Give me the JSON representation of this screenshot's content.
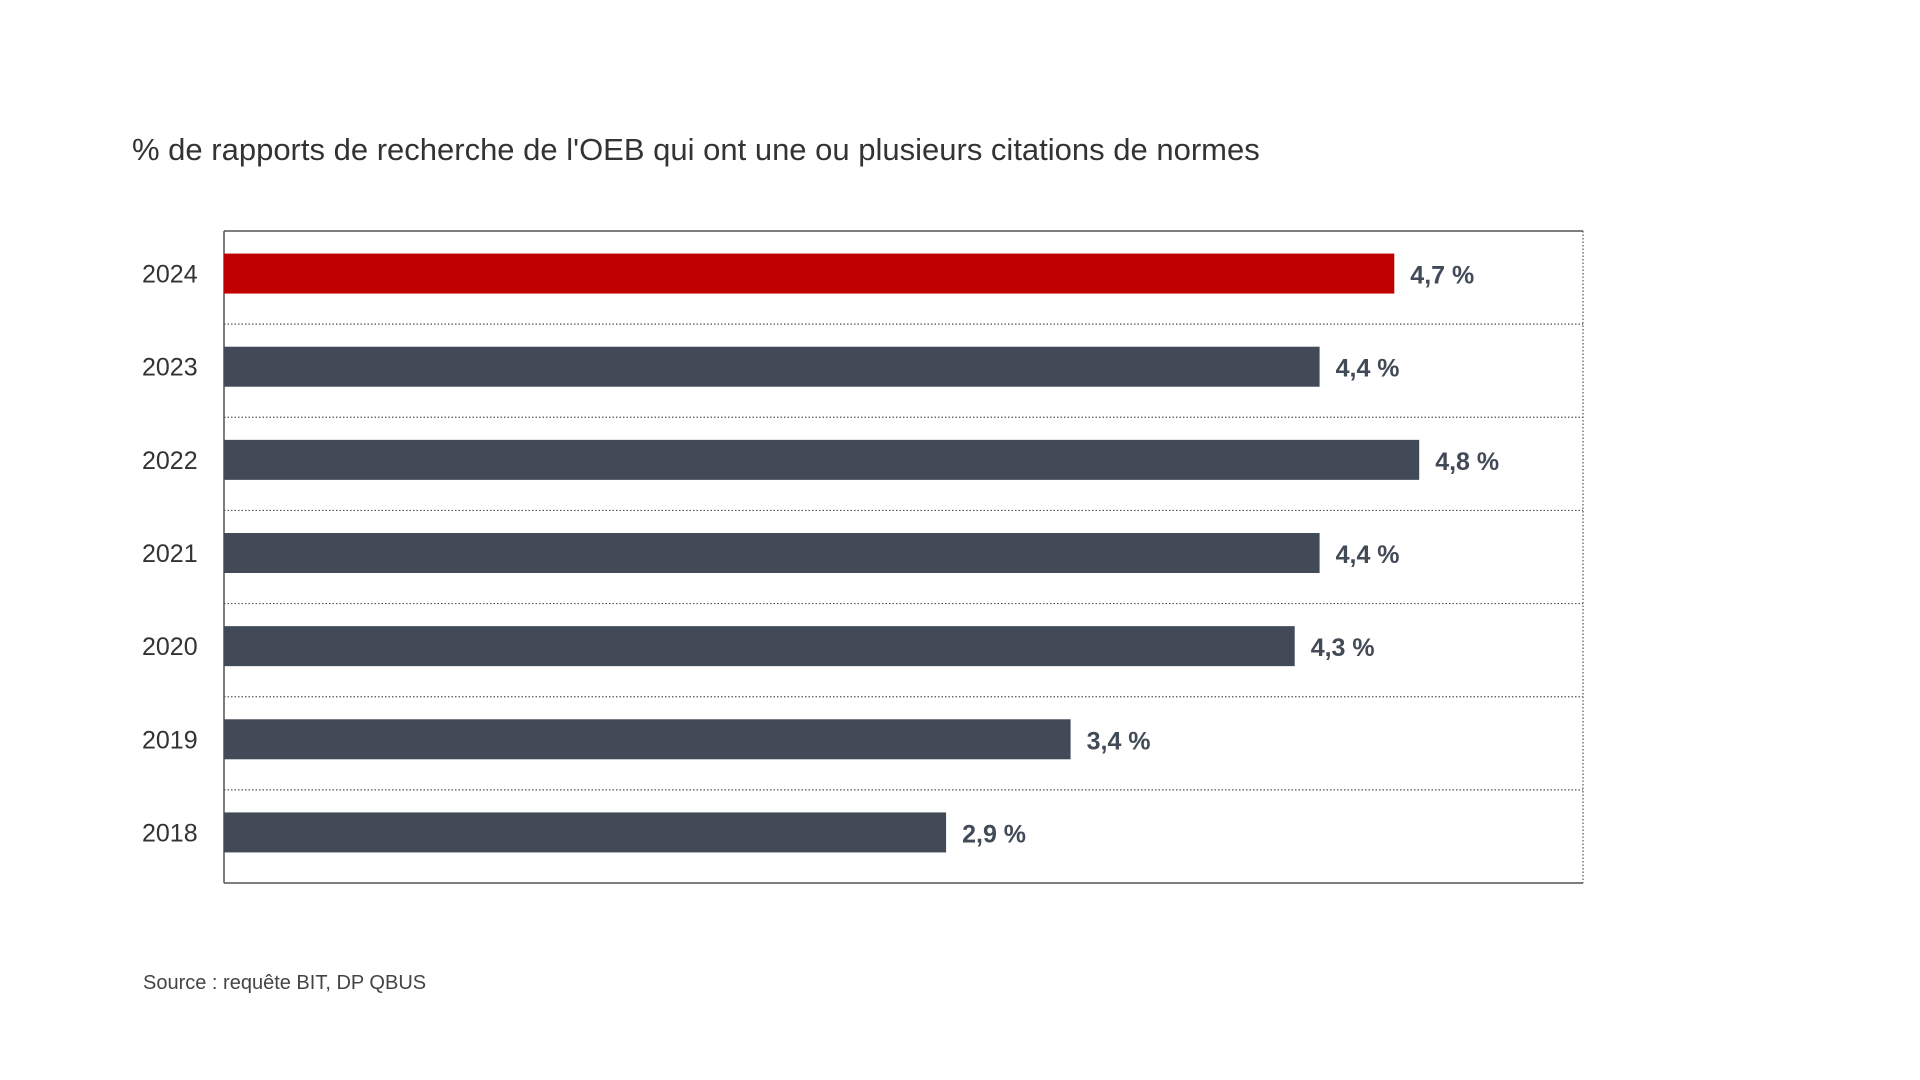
{
  "chart_data": {
    "type": "bar",
    "orientation": "horizontal",
    "title": "% de rapports de recherche de l'OEB qui ont une ou plusieurs citations de normes",
    "categories": [
      "2024",
      "2023",
      "2022",
      "2021",
      "2020",
      "2019",
      "2018"
    ],
    "values": [
      4.7,
      4.4,
      4.8,
      4.4,
      4.3,
      3.4,
      2.9
    ],
    "data_labels": [
      "4,7 %",
      "4,4 %",
      "4,8 %",
      "4,4 %",
      "4,3 %",
      "3,4 %",
      "2,9 %"
    ],
    "highlight_category": "2024",
    "colors": {
      "highlight": "#c00000",
      "default": "#424a57"
    },
    "xlim": [
      0,
      5.4
    ],
    "grid": "dotted row separators",
    "xlabel": "",
    "ylabel": ""
  },
  "source": "Source : requête BIT, DP QBUS"
}
